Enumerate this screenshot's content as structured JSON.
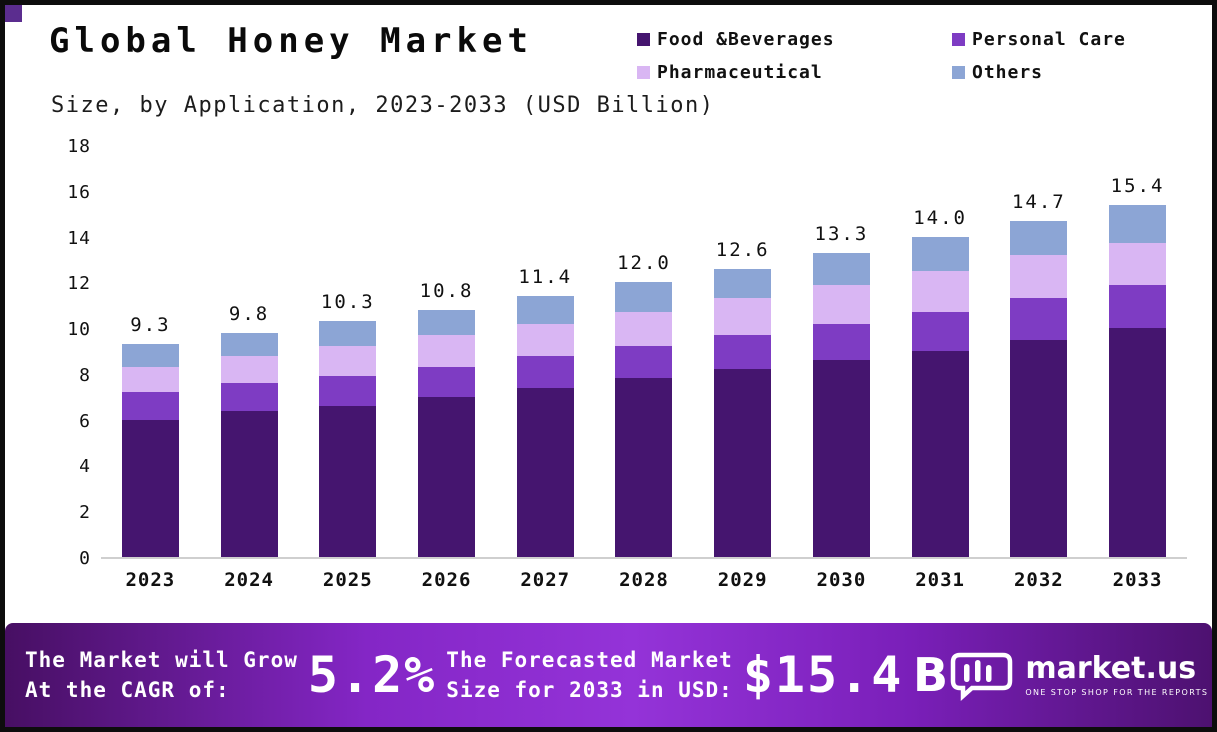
{
  "header": {
    "title": "Global Honey Market",
    "subtitle": "Size, by Application, 2023-2033 (USD Billion)"
  },
  "chart_data": {
    "type": "bar",
    "stacked": true,
    "title": "Global Honey Market Size, by Application, 2023-2033 (USD Billion)",
    "categories": [
      "2023",
      "2024",
      "2025",
      "2026",
      "2027",
      "2028",
      "2029",
      "2030",
      "2031",
      "2032",
      "2033"
    ],
    "series": [
      {
        "name": "Food &Beverages",
        "color": "#45156f",
        "values": [
          6.0,
          6.4,
          6.6,
          7.0,
          7.4,
          7.8,
          8.2,
          8.6,
          9.0,
          9.5,
          10.0
        ]
      },
      {
        "name": "Personal Care",
        "color": "#7e3cc3",
        "values": [
          1.2,
          1.2,
          1.3,
          1.3,
          1.4,
          1.4,
          1.5,
          1.6,
          1.7,
          1.8,
          1.9
        ]
      },
      {
        "name": "Pharmaceutical",
        "color": "#d9b6f3",
        "values": [
          1.1,
          1.2,
          1.3,
          1.4,
          1.4,
          1.5,
          1.6,
          1.7,
          1.8,
          1.9,
          1.8
        ]
      },
      {
        "name": "Others",
        "color": "#8ca5d5",
        "values": [
          1.0,
          1.0,
          1.1,
          1.1,
          1.2,
          1.3,
          1.3,
          1.4,
          1.5,
          1.5,
          1.7
        ]
      }
    ],
    "totals": [
      9.3,
      9.8,
      10.3,
      10.8,
      11.4,
      12.0,
      12.6,
      13.3,
      14.0,
      14.7,
      15.4
    ],
    "xlabel": "",
    "ylabel": "",
    "ylim": [
      0,
      18
    ],
    "yticks": [
      0,
      2,
      4,
      6,
      8,
      10,
      12,
      14,
      16,
      18
    ],
    "grid": false,
    "legend_position": "top-right"
  },
  "footer": {
    "cagr_line1": "The Market will Grow",
    "cagr_line2": "At the CAGR of:",
    "cagr_value": "5.2%",
    "forecast_line1": "The Forecasted Market",
    "forecast_line2": "Size for 2033 in USD:",
    "forecast_value": "$15.4",
    "brand": "market.us",
    "brand_tagline": "ONE STOP SHOP FOR THE REPORTS"
  }
}
